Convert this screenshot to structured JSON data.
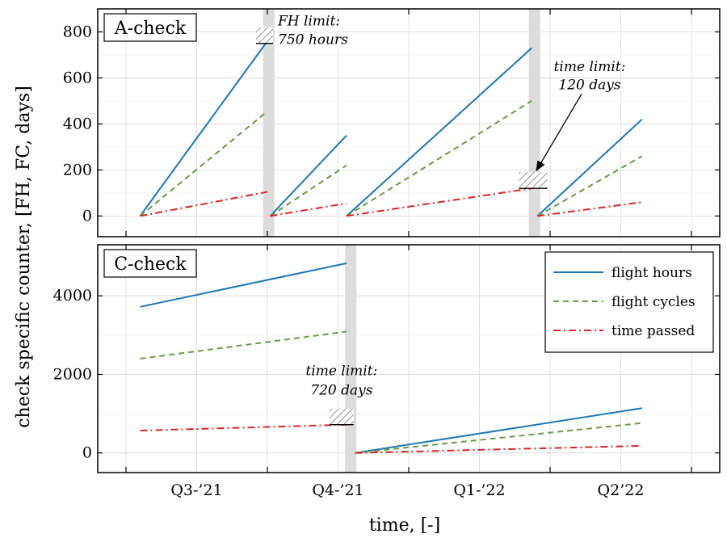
{
  "chart_data": [
    {
      "type": "line",
      "panel_label": "A-check",
      "ylim": [
        -90,
        900
      ],
      "yticks": [
        0,
        200,
        400,
        600,
        800
      ],
      "colors": {
        "flight_hours": "#1f77b4",
        "flight_cycles": "#6a9a48",
        "time_passed": "#d62728"
      },
      "series": [
        {
          "name": "flight hours",
          "key": "flight_hours",
          "segments": [
            [
              [
                0.1,
                0
              ],
              [
                1.0,
                760
              ]
            ],
            [
              [
                1.02,
                0
              ],
              [
                1.56,
                350
              ]
            ],
            [
              [
                1.56,
                0
              ],
              [
                2.87,
                730
              ]
            ],
            [
              [
                2.91,
                0
              ],
              [
                3.65,
                420
              ]
            ]
          ]
        },
        {
          "name": "flight cycles",
          "key": "flight_cycles",
          "segments": [
            [
              [
                0.1,
                0
              ],
              [
                1.0,
                455
              ]
            ],
            [
              [
                1.02,
                0
              ],
              [
                1.56,
                220
              ]
            ],
            [
              [
                1.56,
                0
              ],
              [
                2.87,
                500
              ]
            ],
            [
              [
                2.91,
                0
              ],
              [
                3.65,
                260
              ]
            ]
          ]
        },
        {
          "name": "time passed",
          "key": "time_passed",
          "segments": [
            [
              [
                0.1,
                0
              ],
              [
                1.0,
                105
              ]
            ],
            [
              [
                1.02,
                0
              ],
              [
                1.56,
                55
              ]
            ],
            [
              [
                1.56,
                0
              ],
              [
                2.87,
                120
              ]
            ],
            [
              [
                2.91,
                0
              ],
              [
                3.65,
                60
              ]
            ]
          ]
        }
      ],
      "maintenance_x": [
        1.01,
        2.89
      ],
      "limits": [
        {
          "x_range": [
            0.92,
            1.04
          ],
          "y": 750,
          "annotation": [
            "FH limit:",
            "750 hours"
          ]
        },
        {
          "x_range": [
            2.78,
            2.98
          ],
          "y": 120,
          "annotation": [
            "time limit:",
            "120 days"
          ]
        }
      ]
    },
    {
      "type": "line",
      "panel_label": "C-check",
      "ylim": [
        -500,
        5300
      ],
      "yticks": [
        0,
        2000,
        4000
      ],
      "colors": {
        "flight_hours": "#1f77b4",
        "flight_cycles": "#6a9a48",
        "time_passed": "#d62728"
      },
      "series": [
        {
          "name": "flight hours",
          "key": "flight_hours",
          "segments": [
            [
              [
                0.1,
                3720
              ],
              [
                1.56,
                4830
              ]
            ],
            [
              [
                1.62,
                0
              ],
              [
                3.65,
                1140
              ]
            ]
          ]
        },
        {
          "name": "flight cycles",
          "key": "flight_cycles",
          "segments": [
            [
              [
                0.1,
                2400
              ],
              [
                1.56,
                3090
              ]
            ],
            [
              [
                1.62,
                0
              ],
              [
                3.65,
                760
              ]
            ]
          ]
        },
        {
          "name": "time passed",
          "key": "time_passed",
          "segments": [
            [
              [
                0.1,
                570
              ],
              [
                1.56,
                720
              ]
            ],
            [
              [
                1.62,
                0
              ],
              [
                3.65,
                180
              ]
            ]
          ]
        }
      ],
      "maintenance_x": [
        1.59
      ],
      "limits": [
        {
          "x_range": [
            1.44,
            1.61
          ],
          "y": 720,
          "annotation": [
            "time limit:",
            "720 days"
          ]
        }
      ]
    }
  ],
  "x_axis": {
    "label": "time, [-]",
    "tick_labels": [
      "Q3-’21",
      "Q4-’21",
      "Q1-’22",
      "Q2’22"
    ],
    "tick_positions": [
      0.5,
      1.5,
      2.5,
      3.5
    ],
    "minor_ticks": [
      0,
      1,
      2,
      3,
      4
    ],
    "xlim": [
      -0.2,
      4.2
    ]
  },
  "y_axis_label": "check specific counter, [FH, FC, days]",
  "legend": {
    "placement": "top-right of C-check panel",
    "entries": [
      {
        "label": "flight hours",
        "key": "flight_hours"
      },
      {
        "label": "flight cycles",
        "key": "flight_cycles"
      },
      {
        "label": "time passed",
        "key": "time_passed"
      }
    ]
  }
}
